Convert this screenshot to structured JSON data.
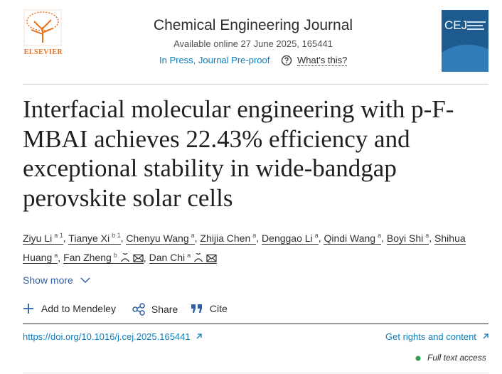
{
  "journal": {
    "publisher": "ELSEVIER",
    "name": "Chemical Engineering Journal",
    "availability": "Available online 27 June 2025, 165441",
    "status": "In Press, Journal Pre-proof",
    "help": "What's this?",
    "cover_label": "CEJ"
  },
  "article": {
    "title": "Interfacial molecular engineering with p-F-MBAI achieves 22.43% efficiency and exceptional stability in wide-bandgap perovskite solar cells",
    "authors": [
      {
        "name": "Ziyu Li",
        "affiliation": "a 1"
      },
      {
        "name": "Tianye Xi",
        "affiliation": "b 1"
      },
      {
        "name": "Chenyu Wang",
        "affiliation": "a"
      },
      {
        "name": "Zhijia Chen",
        "affiliation": "a"
      },
      {
        "name": "Denggao Li",
        "affiliation": "a"
      },
      {
        "name": "Qindi Wang",
        "affiliation": "a"
      },
      {
        "name": "Boyi Shi",
        "affiliation": "a"
      },
      {
        "name": "Shihua Huang",
        "affiliation": "a"
      },
      {
        "name": "Fan Zheng",
        "affiliation": "b",
        "corresponding": true
      },
      {
        "name": "Dan Chi",
        "affiliation": "a",
        "corresponding": true
      }
    ],
    "show_more": "Show more",
    "actions": [
      "Add to Mendeley",
      "Share",
      "Cite"
    ],
    "doi": "https://doi.org/10.1016/j.cej.2025.165441",
    "rights": "Get rights and content",
    "access": "Full text access"
  }
}
